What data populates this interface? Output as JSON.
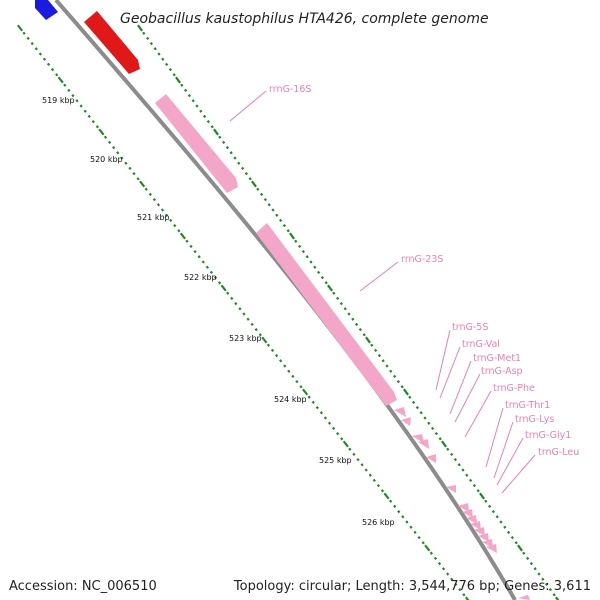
{
  "title": "Geobacillus kaustophilus HTA426, complete genome",
  "footer": {
    "accession": "Accession: NC_006510",
    "topology": "Topology: circular; Length: 3,544,776 bp; Genes: 3,611"
  },
  "ruler_labels": [
    "519 kbp",
    "520 kbp",
    "521 kbp",
    "522 kbp",
    "523 kbp",
    "524 kbp",
    "525 kbp",
    "526 kbp"
  ],
  "gene_labels": [
    "rrnG-16S",
    "rrnG-23S",
    "trnG-5S",
    "trnG-Val",
    "trnG-Met1",
    "trnG-Asp",
    "trnG-Phe",
    "trnG-Thr1",
    "trnG-Lys",
    "trnG-Gly1",
    "trnG-Leu"
  ],
  "colors": {
    "backbone": "#8c8c8c",
    "ticks": "#1f8a1f",
    "cds_forward": "#e01818",
    "cds_reverse": "#1a1ae0",
    "rna": "#f4a6c8",
    "label": "#e87fb5"
  }
}
